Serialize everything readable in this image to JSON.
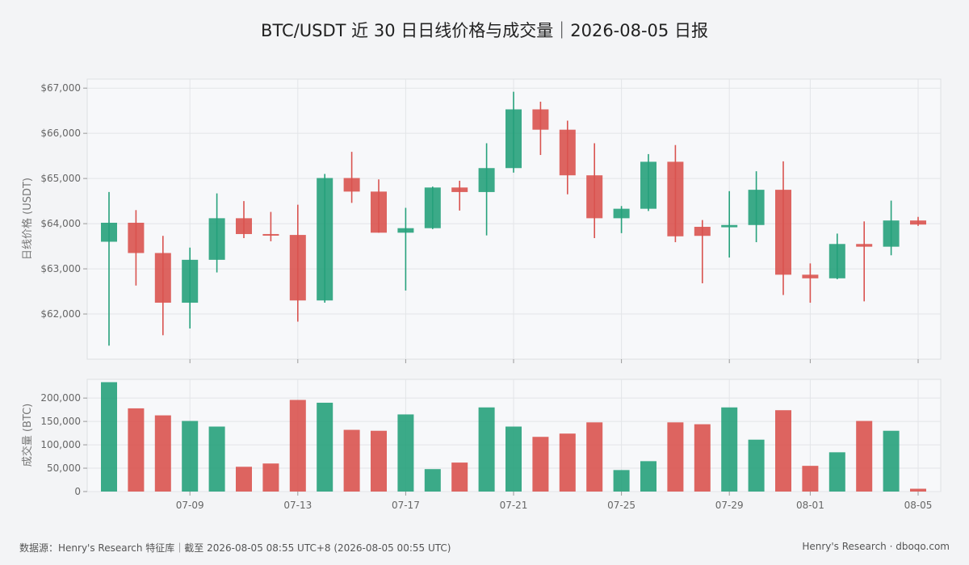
{
  "title": "BTC/USDT 近 30 日日线价格与成交量｜2026-08-05 日报",
  "footer": {
    "source": "数据源：Henry's Research 特征库｜截至 2026-08-05 08:55 UTC+8 (2026-08-05 00:55 UTC)",
    "brand": "Henry's Research · dboqo.com"
  },
  "colors": {
    "up": "#26a17b",
    "down": "#d9534f",
    "panel": "#f7f8fa",
    "grid": "#e3e5e8"
  },
  "chart_data": [
    {
      "type": "candlestick",
      "ylabel": "日线价格 (USDT)",
      "ylim": [
        61000,
        67200
      ],
      "yticks": [
        62000,
        63000,
        64000,
        65000,
        66000,
        67000
      ],
      "ytick_labels": [
        "$62,000",
        "$63,000",
        "$64,000",
        "$65,000",
        "$66,000",
        "$67,000"
      ],
      "dates": [
        "07-06",
        "07-07",
        "07-08",
        "07-09",
        "07-10",
        "07-11",
        "07-12",
        "07-13",
        "07-14",
        "07-15",
        "07-16",
        "07-17",
        "07-18",
        "07-19",
        "07-20",
        "07-21",
        "07-22",
        "07-23",
        "07-24",
        "07-25",
        "07-26",
        "07-27",
        "07-28",
        "07-29",
        "07-30",
        "07-31",
        "08-01",
        "08-02",
        "08-03",
        "08-04",
        "08-05"
      ],
      "open": [
        63600,
        64020,
        63350,
        62250,
        63200,
        64120,
        63770,
        63750,
        62300,
        65010,
        64710,
        63800,
        63900,
        64800,
        64700,
        65230,
        66530,
        66080,
        65070,
        64120,
        64330,
        65370,
        63930,
        63920,
        63970,
        64750,
        62870,
        62790,
        63550,
        63490,
        64070
      ],
      "high": [
        64700,
        64300,
        63730,
        63470,
        64670,
        64500,
        64260,
        64420,
        65100,
        65590,
        64980,
        64350,
        64820,
        64950,
        65780,
        66920,
        66700,
        66280,
        65780,
        64390,
        65540,
        65740,
        64080,
        64720,
        65160,
        65380,
        63120,
        63780,
        64050,
        64510,
        64150
      ],
      "low": [
        61300,
        62630,
        61530,
        61680,
        62920,
        63680,
        63610,
        61830,
        62250,
        64460,
        63800,
        62520,
        63880,
        64290,
        63740,
        65130,
        65520,
        64650,
        63680,
        63790,
        64280,
        63590,
        62680,
        63250,
        63590,
        62420,
        62250,
        62770,
        62280,
        63300,
        63950
      ],
      "close": [
        64020,
        63350,
        62250,
        63200,
        64120,
        63770,
        63750,
        62300,
        65010,
        64710,
        63800,
        63900,
        64800,
        64700,
        65230,
        66530,
        66080,
        65070,
        64120,
        64330,
        65370,
        63720,
        63730,
        63970,
        64750,
        62870,
        62790,
        63550,
        63490,
        64070,
        63980
      ],
      "xtick_labels": [
        "07-09",
        "07-13",
        "07-17",
        "07-21",
        "07-25",
        "07-29",
        "08-01",
        "08-05"
      ]
    },
    {
      "type": "bar",
      "ylabel": "成交量 (BTC)",
      "ylim": [
        0,
        240000
      ],
      "yticks": [
        0,
        50000,
        100000,
        150000,
        200000
      ],
      "ytick_labels": [
        "0",
        "50,000",
        "100,000",
        "150,000",
        "200,000"
      ],
      "values": [
        234000,
        178000,
        163000,
        151000,
        139000,
        53000,
        60000,
        196000,
        190000,
        132000,
        130000,
        165000,
        48000,
        62000,
        180000,
        139000,
        117000,
        124000,
        148000,
        46000,
        65000,
        148000,
        144000,
        180000,
        111000,
        174000,
        55000,
        84000,
        151000,
        130000,
        6000
      ]
    }
  ]
}
